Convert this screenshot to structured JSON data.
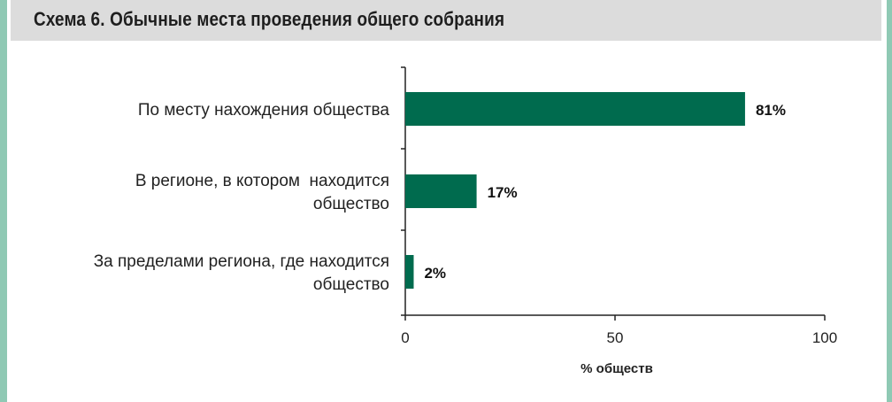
{
  "title": "Схема 6. Обычные места проведения общего собрания",
  "colors": {
    "bar": "#006b4e",
    "frame": "#8fc9b4",
    "title_bg": "#dcdcdc"
  },
  "chart_data": {
    "type": "bar",
    "orientation": "horizontal",
    "categories": [
      [
        "По месту нахождения общества"
      ],
      [
        "В регионе, в котором  находится",
        "общество"
      ],
      [
        "За пределами региона, где находится",
        "общество"
      ]
    ],
    "values": [
      81,
      17,
      2
    ],
    "data_labels": [
      "81%",
      "17%",
      "2%"
    ],
    "xlabel": "% обществ",
    "xlim": [
      0,
      100
    ],
    "xticks": [
      0,
      50,
      100
    ],
    "grid": false,
    "legend": "none"
  }
}
